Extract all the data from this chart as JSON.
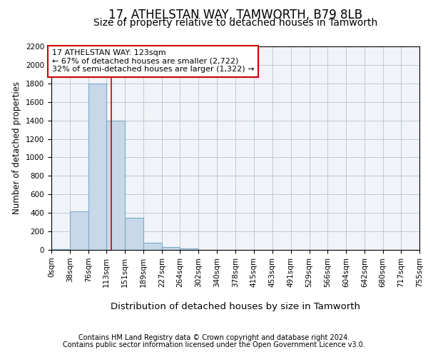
{
  "title": "17, ATHELSTAN WAY, TAMWORTH, B79 8LB",
  "subtitle": "Size of property relative to detached houses in Tamworth",
  "xlabel": "Distribution of detached houses by size in Tamworth",
  "ylabel": "Number of detached properties",
  "footer_line1": "Contains HM Land Registry data © Crown copyright and database right 2024.",
  "footer_line2": "Contains public sector information licensed under the Open Government Licence v3.0.",
  "annotation_line1": "17 ATHELSTAN WAY: 123sqm",
  "annotation_line2": "← 67% of detached houses are smaller (2,722)",
  "annotation_line3": "32% of semi-detached houses are larger (1,322) →",
  "property_size": 123,
  "bin_edges": [
    0,
    38,
    76,
    113,
    151,
    189,
    227,
    264,
    302,
    340,
    378,
    415,
    453,
    491,
    529,
    566,
    604,
    642,
    680,
    717,
    755
  ],
  "bar_heights": [
    10,
    420,
    1800,
    1400,
    350,
    80,
    30,
    15,
    0,
    0,
    0,
    0,
    0,
    0,
    0,
    0,
    0,
    0,
    0,
    0
  ],
  "bar_color": "#c8d8e8",
  "bar_edgecolor": "#7aaac8",
  "bar_linewidth": 0.8,
  "vline_color": "#cc0000",
  "vline_linewidth": 1.2,
  "grid_color": "#c0c8d8",
  "background_color": "#f0f4f8",
  "ylim": [
    0,
    2200
  ],
  "yticks": [
    0,
    200,
    400,
    600,
    800,
    1000,
    1200,
    1400,
    1600,
    1800,
    2000,
    2200
  ],
  "title_fontsize": 12,
  "subtitle_fontsize": 10,
  "xlabel_fontsize": 9.5,
  "ylabel_fontsize": 8.5,
  "tick_fontsize": 7.5,
  "annotation_fontsize": 8,
  "footer_fontsize": 7
}
